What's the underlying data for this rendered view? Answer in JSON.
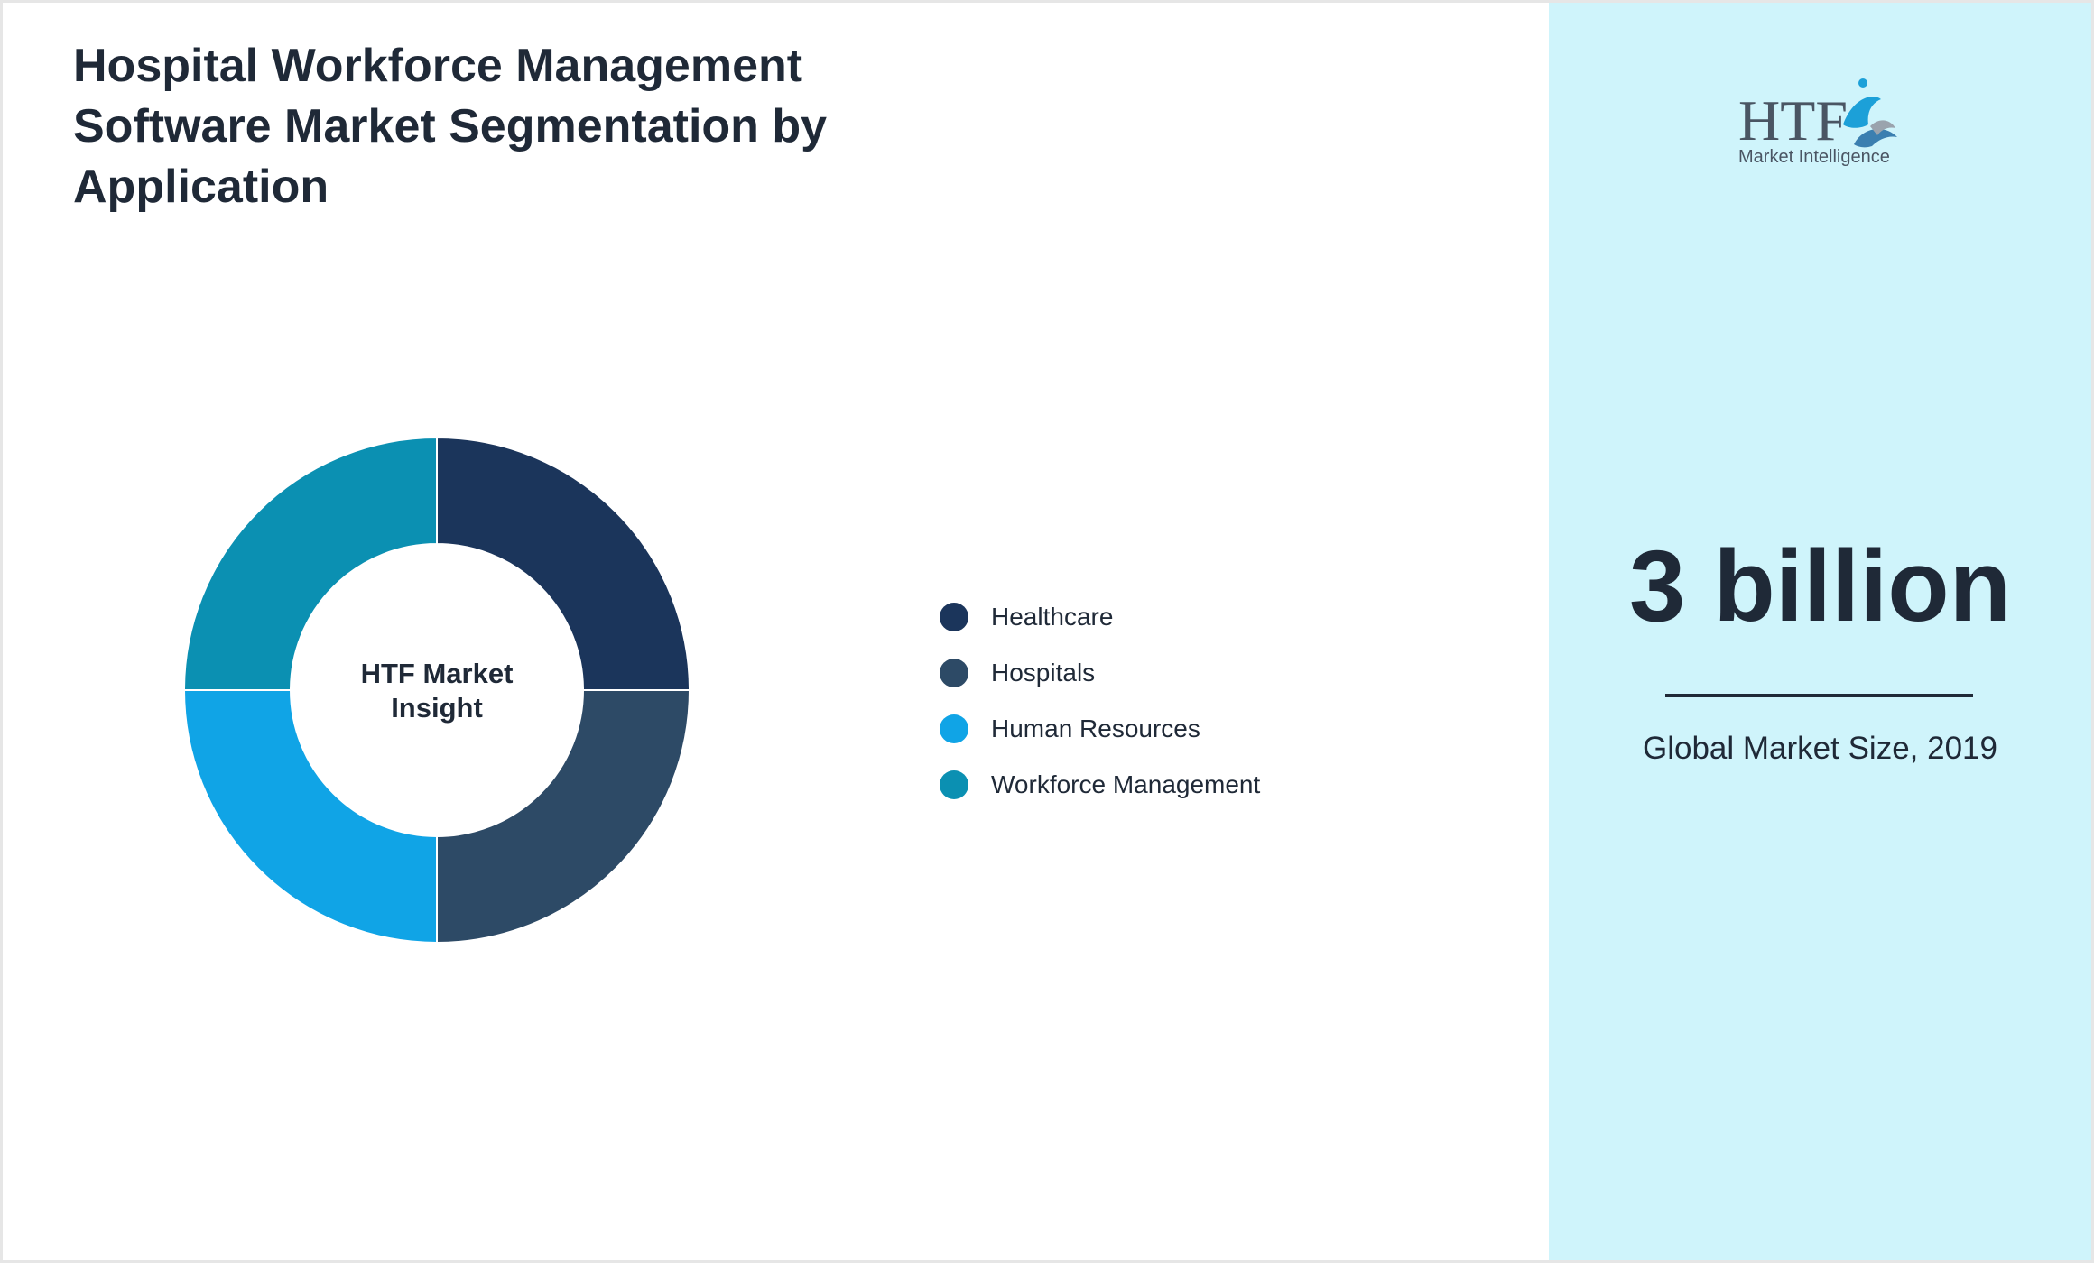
{
  "header": {
    "title": "Hospital Workforce Management Software Market Segmentation by Application"
  },
  "chart_data": {
    "type": "pie",
    "center_label": "HTF Market Insight",
    "categories": [
      "Healthcare",
      "Hospitals",
      "Human Resources",
      "Workforce Management"
    ],
    "values": [
      25,
      25,
      25,
      25
    ],
    "colors": [
      "#1b355b",
      "#2d4a66",
      "#10a4e6",
      "#0b90b2"
    ],
    "legend_position": "right"
  },
  "logo": {
    "text_main": "HTF",
    "text_sub": "Market Intelligence"
  },
  "stat": {
    "value": "3 billion",
    "caption": "Global Market Size, 2019"
  },
  "colors": {
    "sidebar_bg": "#cff4fb",
    "text": "#1f2937"
  }
}
